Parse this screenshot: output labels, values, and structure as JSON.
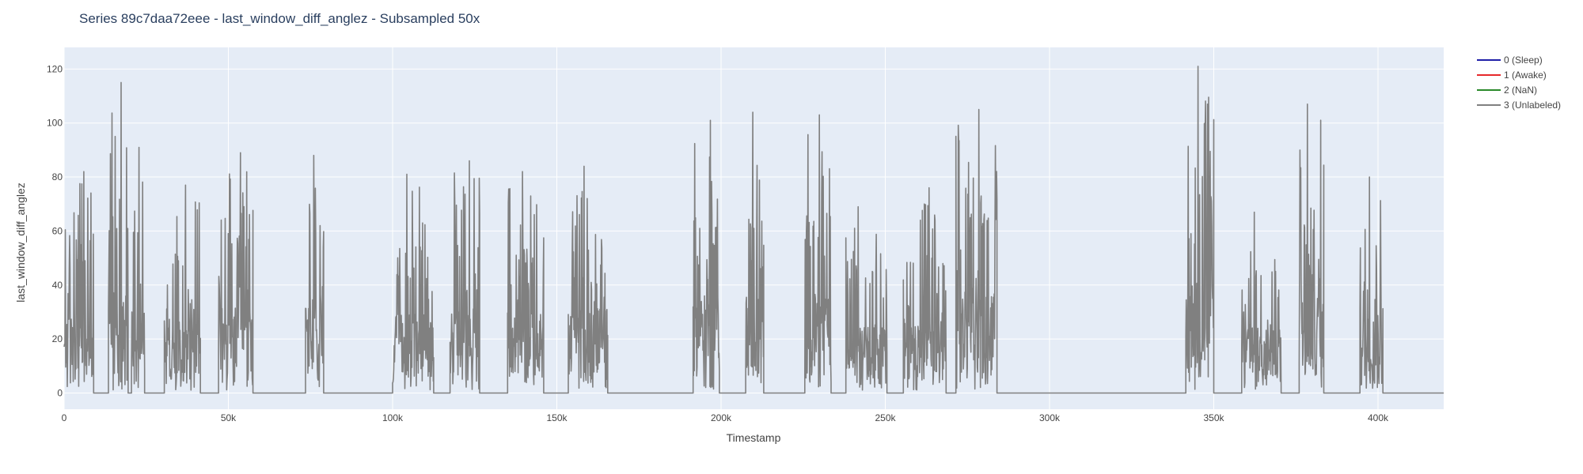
{
  "chart_data": {
    "type": "line",
    "title": "Series 89c7daa72eee - last_window_diff_anglez - Subsampled 50x",
    "xlabel": "Timestamp",
    "ylabel": "last_window_diff_anglez",
    "xlim": [
      0,
      420000
    ],
    "ylim": [
      -6,
      128
    ],
    "x_ticks": [
      0,
      50000,
      100000,
      150000,
      200000,
      250000,
      300000,
      350000,
      400000
    ],
    "x_tick_labels": [
      "0",
      "50k",
      "100k",
      "150k",
      "200k",
      "250k",
      "300k",
      "350k",
      "400k"
    ],
    "y_ticks": [
      0,
      20,
      40,
      60,
      80,
      100,
      120
    ],
    "y_tick_labels": [
      "0",
      "20",
      "40",
      "60",
      "80",
      "100",
      "120"
    ],
    "grid": true,
    "legend_position": "right",
    "series": [
      {
        "name": "0 (Sleep)",
        "color": "#1f1fa8",
        "x": [],
        "y": []
      },
      {
        "name": "1 (Awake)",
        "color": "#e6282b",
        "x": [],
        "y": []
      },
      {
        "name": "2 (NaN)",
        "color": "#2a8a2a",
        "x": [],
        "y": []
      },
      {
        "name": "3 (Unlabeled)",
        "color": "#808080",
        "active_segments": [
          {
            "start": 0,
            "end": 9000,
            "max": 82
          },
          {
            "start": 13500,
            "end": 19500,
            "max": 115
          },
          {
            "start": 20500,
            "end": 24500,
            "max": 91
          },
          {
            "start": 30500,
            "end": 41500,
            "max": 77
          },
          {
            "start": 47000,
            "end": 57500,
            "max": 89
          },
          {
            "start": 73500,
            "end": 79000,
            "max": 88
          },
          {
            "start": 100000,
            "end": 112500,
            "max": 81
          },
          {
            "start": 117500,
            "end": 126500,
            "max": 86
          },
          {
            "start": 135000,
            "end": 146000,
            "max": 82
          },
          {
            "start": 153500,
            "end": 165500,
            "max": 84
          },
          {
            "start": 191500,
            "end": 199500,
            "max": 101
          },
          {
            "start": 207500,
            "end": 213000,
            "max": 104
          },
          {
            "start": 225500,
            "end": 233500,
            "max": 103
          },
          {
            "start": 238000,
            "end": 250500,
            "max": 69
          },
          {
            "start": 255500,
            "end": 268500,
            "max": 76
          },
          {
            "start": 271500,
            "end": 284000,
            "max": 105
          },
          {
            "start": 341500,
            "end": 350000,
            "max": 121
          },
          {
            "start": 358500,
            "end": 370500,
            "max": 67
          },
          {
            "start": 376000,
            "end": 383500,
            "max": 107
          },
          {
            "start": 394500,
            "end": 401500,
            "max": 80
          }
        ],
        "baseline": 0
      }
    ]
  }
}
